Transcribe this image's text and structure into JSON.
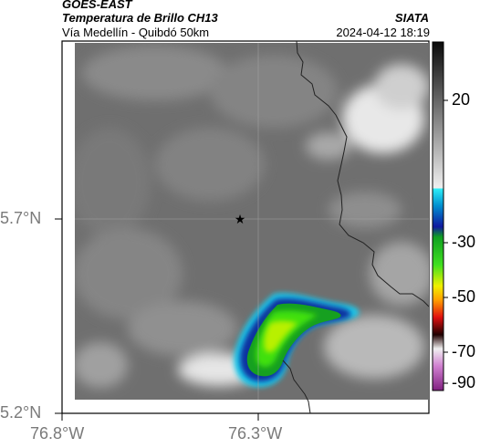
{
  "header": {
    "satellite": "GOES-EAST",
    "product": "Temperatura de Brillo CH13",
    "region": "Vía Medellín - Quibdó 50km",
    "brand": "SIATA",
    "datetime": "2024-04-12 18:19"
  },
  "map": {
    "lat_labels": [
      "5.7°N",
      "5.2°N"
    ],
    "lon_labels": [
      "76.8°W",
      "76.3°W"
    ],
    "marker": "star-marker"
  },
  "colorbar": {
    "ticks": [
      "20",
      "-30",
      "-50",
      "-70",
      "-90"
    ],
    "colors": {
      "warm_gray_top": "#101010",
      "warm_gray_bottom": "#f2f2f2",
      "cyan": "#00c8e0",
      "blue": "#1e28c8",
      "green": "#10c020",
      "yellow": "#f0f000",
      "orange": "#ff8000",
      "red": "#e00000",
      "dark": "#200000",
      "magenta": "#c040c0"
    }
  }
}
